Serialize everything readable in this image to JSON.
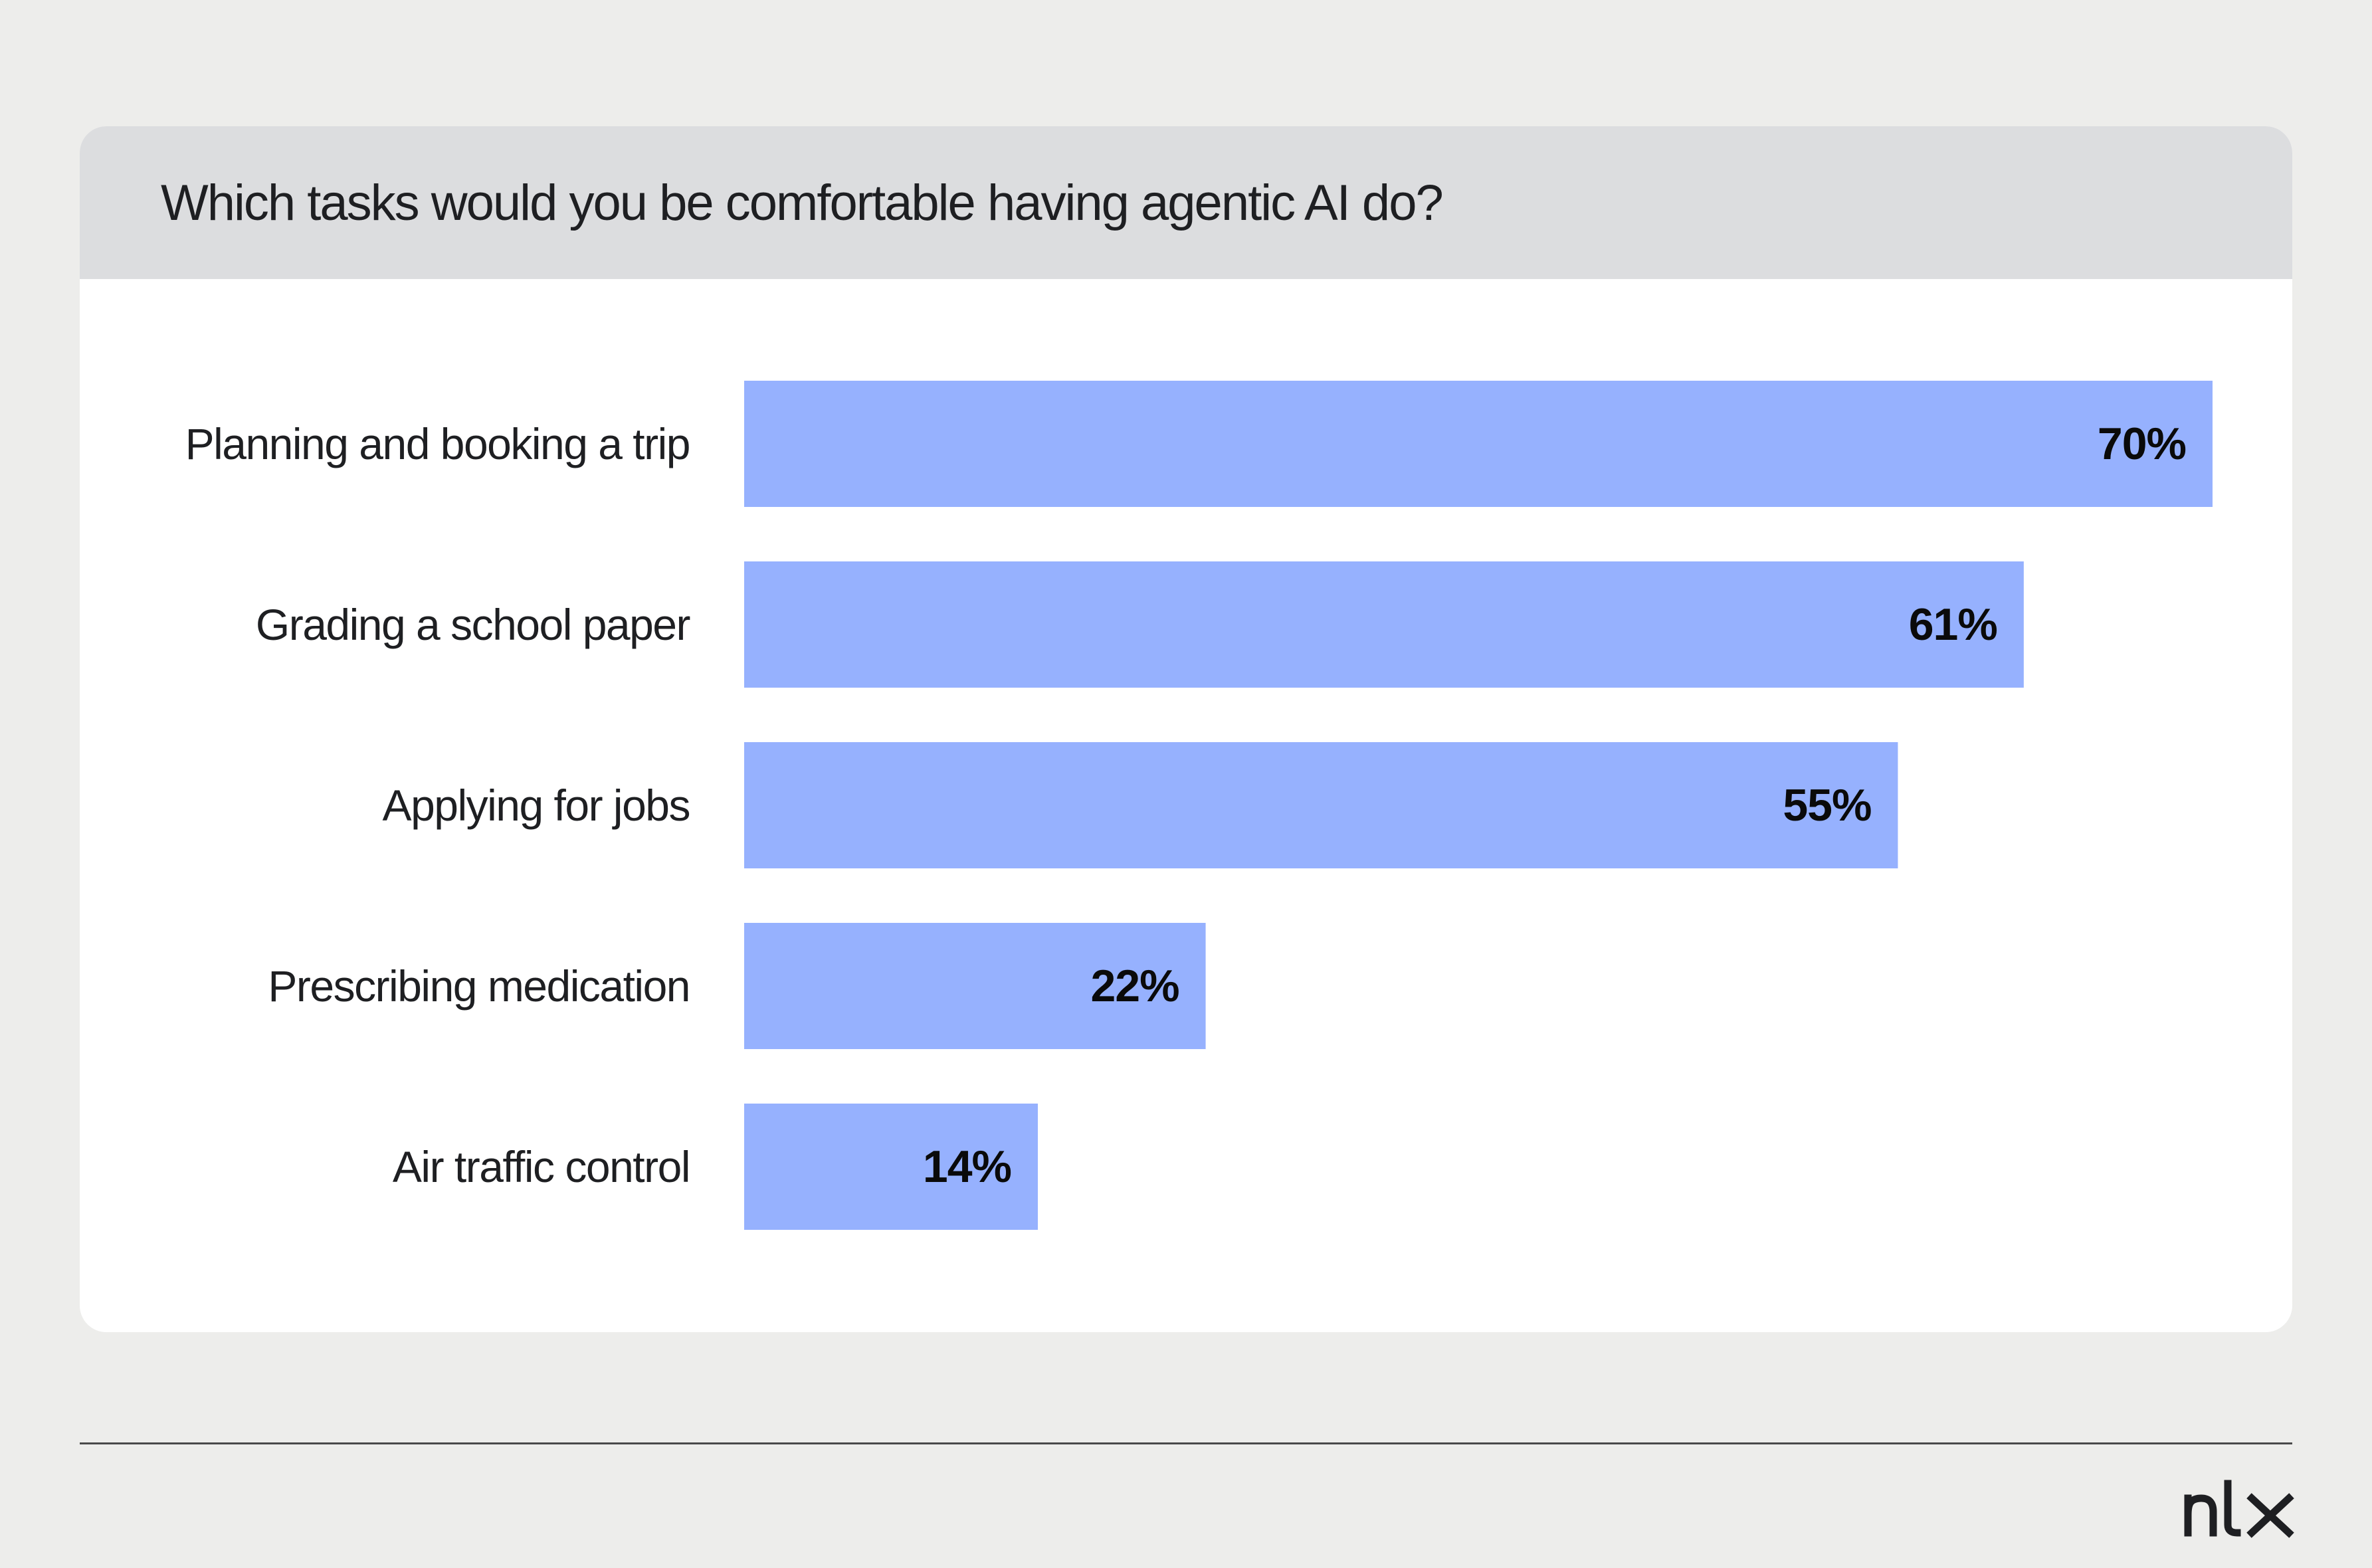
{
  "chart_data": {
    "type": "bar",
    "orientation": "horizontal",
    "title": "Which tasks would you be comfortable having agentic AI do?",
    "categories": [
      "Planning and booking a trip",
      "Grading a school paper",
      "Applying for jobs",
      "Prescribing medication",
      "Air traffic control"
    ],
    "values": [
      70,
      61,
      55,
      22,
      14
    ],
    "value_labels": [
      "70%",
      "61%",
      "55%",
      "22%",
      "14%"
    ],
    "unit": "%",
    "xlim": [
      0,
      70
    ],
    "grid": false,
    "legend": "none",
    "bar_color": "#96B1FE",
    "label_color": "#0A0A0A"
  },
  "branding": {
    "logo_icon": "nlx-logo-icon"
  }
}
